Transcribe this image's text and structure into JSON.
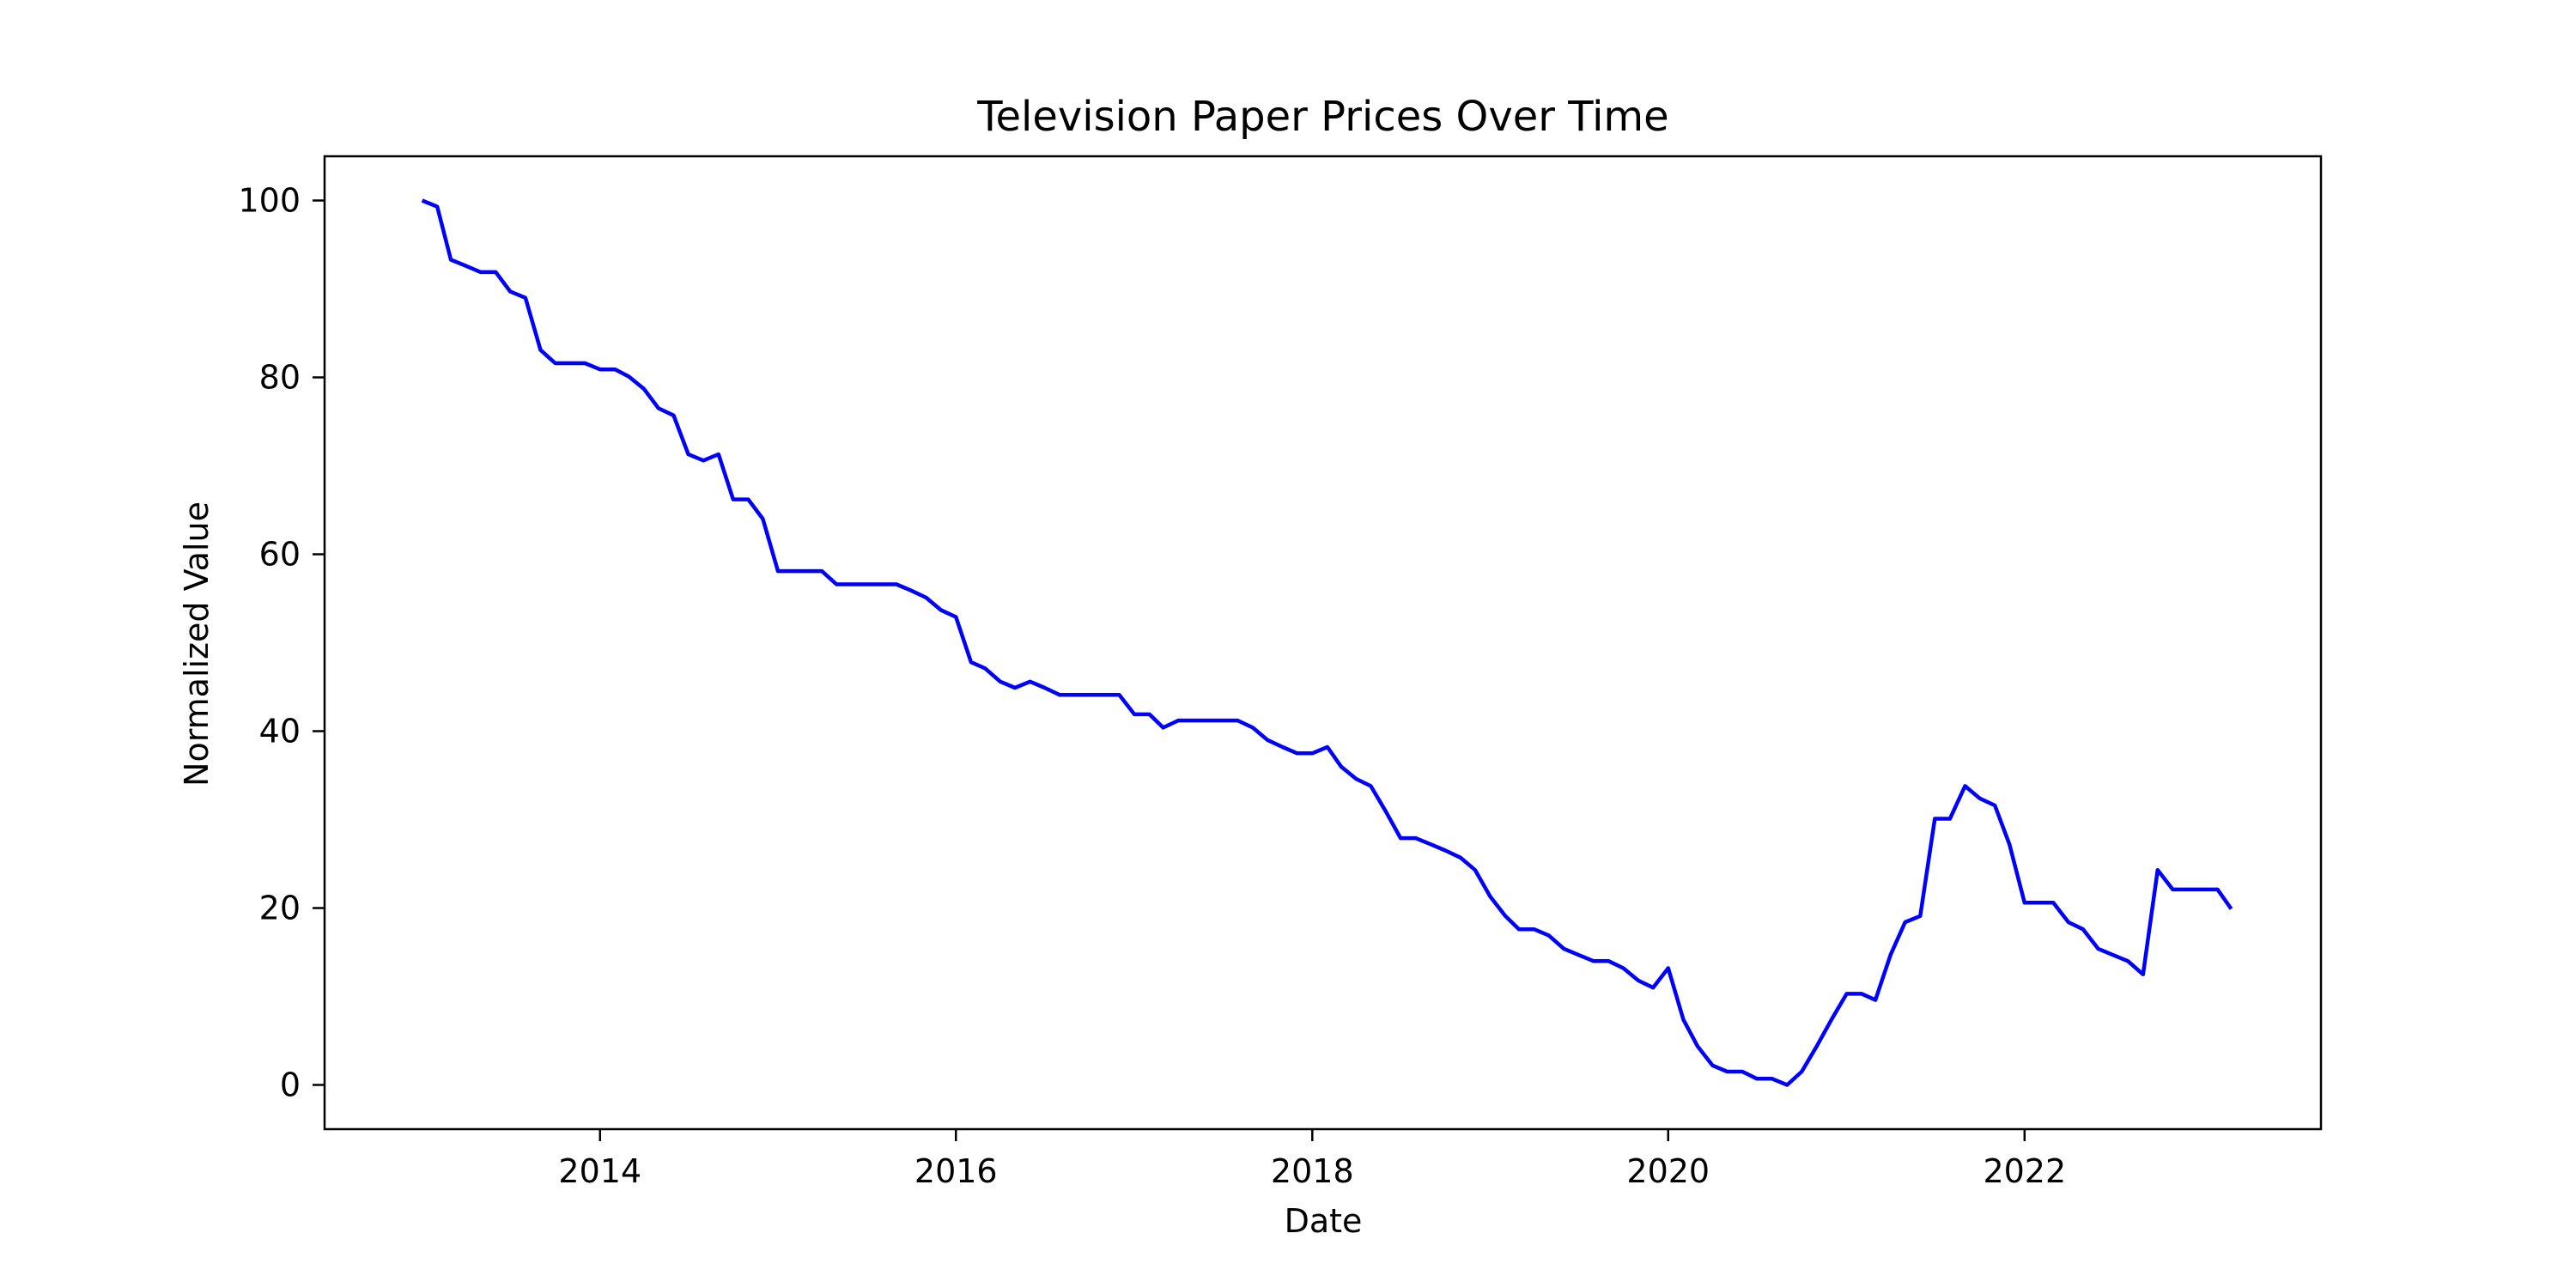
{
  "chart_data": {
    "type": "line",
    "title": "Television Paper Prices Over Time",
    "xlabel": "Date",
    "ylabel": "Normalized Value",
    "x_ticks": [
      "2014",
      "2016",
      "2018",
      "2020",
      "2022"
    ],
    "y_ticks": [
      0,
      20,
      40,
      60,
      80,
      100
    ],
    "xlim": [
      "2012-06-15",
      "2023-09-01"
    ],
    "ylim": [
      -5,
      105
    ],
    "grid": false,
    "series": [
      {
        "color": "#0000ff",
        "points": [
          [
            "2013-01-01",
            100.0
          ],
          [
            "2013-02-01",
            99.3
          ],
          [
            "2013-03-01",
            93.3
          ],
          [
            "2013-04-01",
            92.6
          ],
          [
            "2013-05-01",
            91.9
          ],
          [
            "2013-06-01",
            91.9
          ],
          [
            "2013-07-01",
            89.7
          ],
          [
            "2013-08-01",
            89.0
          ],
          [
            "2013-09-01",
            83.1
          ],
          [
            "2013-10-01",
            81.6
          ],
          [
            "2013-11-01",
            81.6
          ],
          [
            "2013-12-01",
            81.6
          ],
          [
            "2014-01-01",
            80.9
          ],
          [
            "2014-02-01",
            80.9
          ],
          [
            "2014-03-01",
            80.1
          ],
          [
            "2014-04-01",
            78.7
          ],
          [
            "2014-05-01",
            76.5
          ],
          [
            "2014-06-01",
            75.7
          ],
          [
            "2014-07-01",
            71.3
          ],
          [
            "2014-08-01",
            70.6
          ],
          [
            "2014-09-01",
            71.3
          ],
          [
            "2014-10-01",
            66.2
          ],
          [
            "2014-11-01",
            66.2
          ],
          [
            "2014-12-01",
            64.0
          ],
          [
            "2015-01-01",
            58.1
          ],
          [
            "2015-02-01",
            58.1
          ],
          [
            "2015-03-01",
            58.1
          ],
          [
            "2015-04-01",
            58.1
          ],
          [
            "2015-05-01",
            56.6
          ],
          [
            "2015-06-01",
            56.6
          ],
          [
            "2015-07-01",
            56.6
          ],
          [
            "2015-08-01",
            56.6
          ],
          [
            "2015-09-01",
            56.6
          ],
          [
            "2015-10-01",
            55.9
          ],
          [
            "2015-11-01",
            55.1
          ],
          [
            "2015-12-01",
            53.7
          ],
          [
            "2016-01-01",
            52.9
          ],
          [
            "2016-02-01",
            47.8
          ],
          [
            "2016-03-01",
            47.1
          ],
          [
            "2016-04-01",
            45.6
          ],
          [
            "2016-05-01",
            44.9
          ],
          [
            "2016-06-01",
            45.6
          ],
          [
            "2016-07-01",
            44.9
          ],
          [
            "2016-08-01",
            44.1
          ],
          [
            "2016-09-01",
            44.1
          ],
          [
            "2016-10-01",
            44.1
          ],
          [
            "2016-11-01",
            44.1
          ],
          [
            "2016-12-01",
            44.1
          ],
          [
            "2017-01-01",
            41.9
          ],
          [
            "2017-02-01",
            41.9
          ],
          [
            "2017-03-01",
            40.4
          ],
          [
            "2017-04-01",
            41.2
          ],
          [
            "2017-05-01",
            41.2
          ],
          [
            "2017-06-01",
            41.2
          ],
          [
            "2017-07-01",
            41.2
          ],
          [
            "2017-08-01",
            41.2
          ],
          [
            "2017-09-01",
            40.4
          ],
          [
            "2017-10-01",
            39.0
          ],
          [
            "2017-11-01",
            38.2
          ],
          [
            "2017-12-01",
            37.5
          ],
          [
            "2018-01-01",
            37.5
          ],
          [
            "2018-02-01",
            38.2
          ],
          [
            "2018-03-01",
            36.0
          ],
          [
            "2018-04-01",
            34.6
          ],
          [
            "2018-05-01",
            33.8
          ],
          [
            "2018-06-01",
            30.9
          ],
          [
            "2018-07-01",
            27.9
          ],
          [
            "2018-08-01",
            27.9
          ],
          [
            "2018-09-01",
            27.2
          ],
          [
            "2018-10-01",
            26.5
          ],
          [
            "2018-11-01",
            25.7
          ],
          [
            "2018-12-01",
            24.3
          ],
          [
            "2019-01-01",
            21.3
          ],
          [
            "2019-02-01",
            19.1
          ],
          [
            "2019-03-01",
            17.6
          ],
          [
            "2019-04-01",
            17.6
          ],
          [
            "2019-05-01",
            16.9
          ],
          [
            "2019-06-01",
            15.4
          ],
          [
            "2019-07-01",
            14.7
          ],
          [
            "2019-08-01",
            14.0
          ],
          [
            "2019-09-01",
            14.0
          ],
          [
            "2019-10-01",
            13.2
          ],
          [
            "2019-11-01",
            11.8
          ],
          [
            "2019-12-01",
            11.0
          ],
          [
            "2020-01-01",
            13.2
          ],
          [
            "2020-02-01",
            7.4
          ],
          [
            "2020-03-01",
            4.4
          ],
          [
            "2020-04-01",
            2.2
          ],
          [
            "2020-05-01",
            1.5
          ],
          [
            "2020-06-01",
            1.5
          ],
          [
            "2020-07-01",
            0.7
          ],
          [
            "2020-08-01",
            0.7
          ],
          [
            "2020-09-01",
            0.0
          ],
          [
            "2020-10-01",
            1.5
          ],
          [
            "2020-11-01",
            4.4
          ],
          [
            "2020-12-01",
            7.4
          ],
          [
            "2021-01-01",
            10.3
          ],
          [
            "2021-02-01",
            10.3
          ],
          [
            "2021-03-01",
            9.6
          ],
          [
            "2021-04-01",
            14.7
          ],
          [
            "2021-05-01",
            18.4
          ],
          [
            "2021-06-01",
            19.1
          ],
          [
            "2021-07-01",
            30.1
          ],
          [
            "2021-08-01",
            30.1
          ],
          [
            "2021-09-01",
            33.8
          ],
          [
            "2021-10-01",
            32.4
          ],
          [
            "2021-11-01",
            31.6
          ],
          [
            "2021-12-01",
            27.2
          ],
          [
            "2022-01-01",
            20.6
          ],
          [
            "2022-02-01",
            20.6
          ],
          [
            "2022-03-01",
            20.6
          ],
          [
            "2022-04-01",
            18.4
          ],
          [
            "2022-05-01",
            17.6
          ],
          [
            "2022-06-01",
            15.4
          ],
          [
            "2022-07-01",
            14.7
          ],
          [
            "2022-08-01",
            14.0
          ],
          [
            "2022-09-01",
            12.5
          ],
          [
            "2022-10-01",
            24.3
          ],
          [
            "2022-11-01",
            22.1
          ],
          [
            "2022-12-01",
            22.1
          ],
          [
            "2023-01-01",
            22.1
          ],
          [
            "2023-02-01",
            22.1
          ],
          [
            "2023-03-01",
            19.9
          ]
        ]
      }
    ]
  }
}
